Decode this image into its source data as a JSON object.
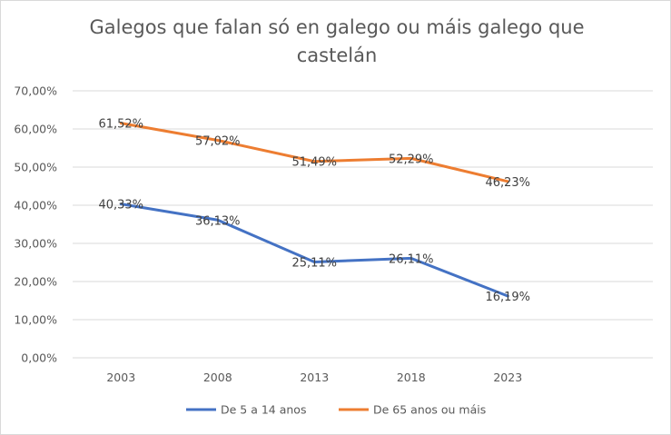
{
  "chart_data": {
    "type": "line",
    "title": "Galegos que falan só en galego ou máis galego que castelán",
    "categories": [
      "2003",
      "2008",
      "2013",
      "2018",
      "2023"
    ],
    "series": [
      {
        "name": "De 5 a 14 anos",
        "color": "#4472c4",
        "values": [
          40.33,
          36.13,
          25.11,
          26.11,
          16.19
        ],
        "labels": [
          "40,33%",
          "36,13%",
          "25,11%",
          "26,11%",
          "16,19%"
        ]
      },
      {
        "name": "De 65 anos ou máis",
        "color": "#ed7d31",
        "values": [
          61.52,
          57.02,
          51.49,
          52.29,
          46.23
        ],
        "labels": [
          "61,52%",
          "57,02%",
          "51,49%",
          "52,29%",
          "46,23%"
        ]
      }
    ],
    "ylim": [
      0,
      70
    ],
    "yticks": [
      "0,00%",
      "10,00%",
      "20,00%",
      "30,00%",
      "40,00%",
      "50,00%",
      "60,00%",
      "70,00%"
    ],
    "xlabel": "",
    "ylabel": "",
    "grid": true,
    "legend_position": "bottom"
  }
}
